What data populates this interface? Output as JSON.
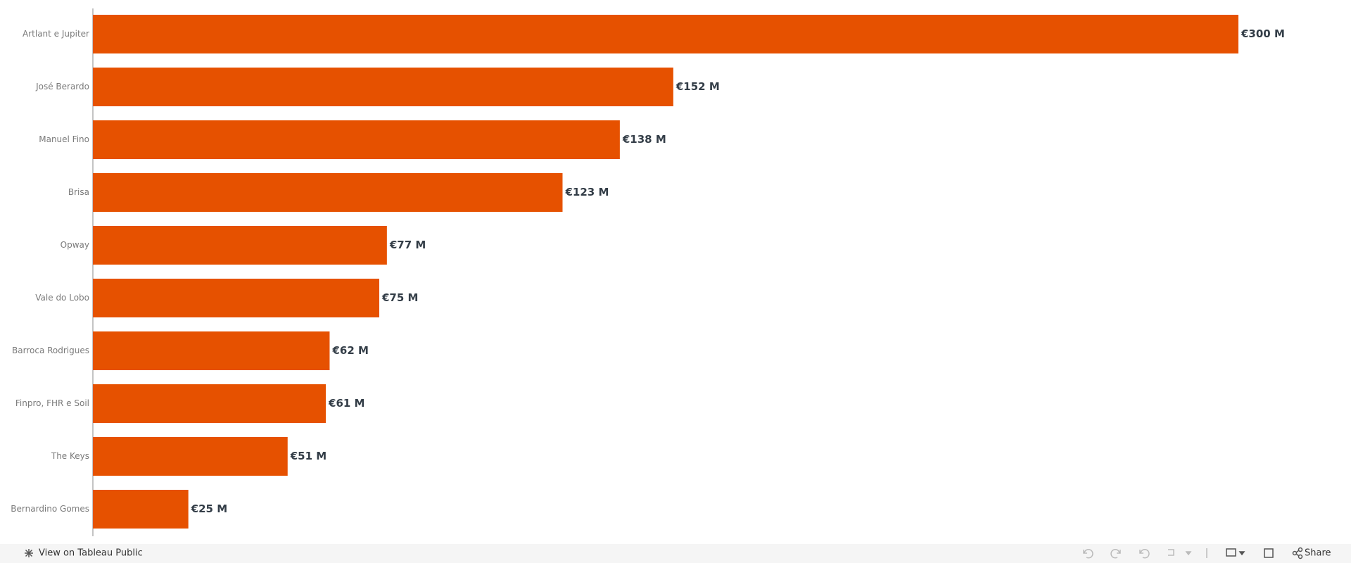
{
  "chart_data": {
    "type": "bar",
    "orientation": "horizontal",
    "categories": [
      "Artlant e Jupiter",
      "José Berardo",
      "Manuel Fino",
      "Brisa",
      "Opway",
      "Vale do Lobo",
      "Barroca Rodrigues",
      "Finpro, FHR e Soil",
      "The Keys",
      "Bernardino Gomes"
    ],
    "values": [
      300,
      152,
      138,
      123,
      77,
      75,
      62,
      61,
      51,
      25
    ],
    "value_labels": [
      "€300 M",
      "€152 M",
      "€138 M",
      "€123 M",
      "€77 M",
      "€75 M",
      "€62 M",
      "€61 M",
      "€51 M",
      "€25 M"
    ],
    "color": "#e65100"
  },
  "toolbar": {
    "link": "View on Tableau Public",
    "share": "Share"
  }
}
